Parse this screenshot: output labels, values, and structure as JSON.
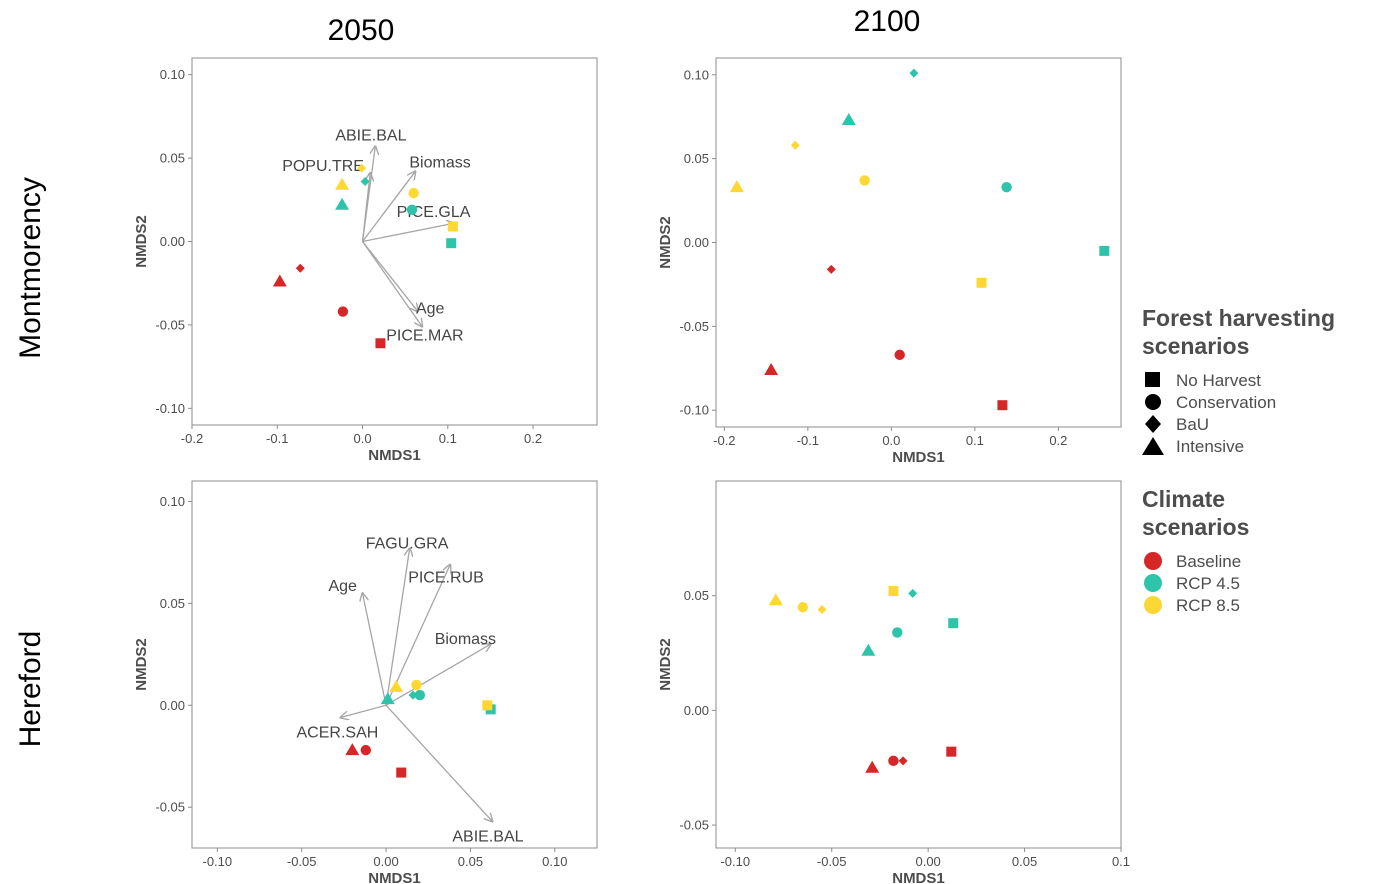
{
  "column_titles": [
    "2050",
    "2100"
  ],
  "row_titles": [
    "Montmorency",
    "Hereford"
  ],
  "colors": {
    "Baseline": "#d62728",
    "RCP 4.5": "#2ec4a9",
    "RCP 8.5": "#fdd835"
  },
  "legend": {
    "harvest": {
      "title_lines": [
        "Forest harvesting",
        "scenarios"
      ],
      "items": [
        {
          "label": "No Harvest",
          "shape": "square"
        },
        {
          "label": "Conservation",
          "shape": "circle"
        },
        {
          "label": "BaU",
          "shape": "diamond"
        },
        {
          "label": "Intensive",
          "shape": "triangle"
        }
      ]
    },
    "climate": {
      "title_lines": [
        "Climate",
        "scenarios"
      ],
      "items": [
        {
          "label": "Baseline",
          "color": "#d62728"
        },
        {
          "label": "RCP 4.5",
          "color": "#2ec4a9"
        },
        {
          "label": "RCP 8.5",
          "color": "#fdd835"
        }
      ]
    }
  },
  "chart_data": [
    {
      "type": "scatter",
      "row": "Montmorency",
      "column": "2050",
      "xlabel": "NMDS1",
      "ylabel": "NMDS2",
      "xlim": [
        -0.2,
        0.275
      ],
      "ylim": [
        -0.11,
        0.11
      ],
      "xticks": [
        -0.2,
        -0.1,
        0.0,
        0.1,
        0.2
      ],
      "xtick_labels": [
        "-0.2",
        "-0.1",
        "0.0",
        "0.1",
        "0.2"
      ],
      "yticks": [
        0.1,
        0.05,
        0.0,
        -0.05,
        -0.1
      ],
      "ytick_labels": [
        "0.10",
        "0.05",
        "0.00",
        "-0.05",
        "-0.10"
      ],
      "points": [
        {
          "climate": "Baseline",
          "harvest": "Intensive",
          "x": -0.097,
          "y": -0.024
        },
        {
          "climate": "Baseline",
          "harvest": "BaU",
          "x": -0.073,
          "y": -0.016
        },
        {
          "climate": "Baseline",
          "harvest": "Conservation",
          "x": -0.023,
          "y": -0.042
        },
        {
          "climate": "Baseline",
          "harvest": "No Harvest",
          "x": 0.021,
          "y": -0.061
        },
        {
          "climate": "RCP 4.5",
          "harvest": "Intensive",
          "x": -0.024,
          "y": 0.022
        },
        {
          "climate": "RCP 4.5",
          "harvest": "BaU",
          "x": 0.003,
          "y": 0.036
        },
        {
          "climate": "RCP 4.5",
          "harvest": "Conservation",
          "x": 0.058,
          "y": 0.019
        },
        {
          "climate": "RCP 4.5",
          "harvest": "No Harvest",
          "x": 0.104,
          "y": -0.001
        },
        {
          "climate": "RCP 8.5",
          "harvest": "Intensive",
          "x": -0.024,
          "y": 0.034
        },
        {
          "climate": "RCP 8.5",
          "harvest": "BaU",
          "x": -0.001,
          "y": 0.044
        },
        {
          "climate": "RCP 8.5",
          "harvest": "Conservation",
          "x": 0.06,
          "y": 0.029
        },
        {
          "climate": "RCP 8.5",
          "harvest": "No Harvest",
          "x": 0.106,
          "y": 0.009
        }
      ],
      "vectors": [
        {
          "label": "ABIE.BAL",
          "x": 0.015,
          "y": 0.057
        },
        {
          "label": "POPU.TRE",
          "x": 0.009,
          "y": 0.041
        },
        {
          "label": "Biomass",
          "x": 0.062,
          "y": 0.042
        },
        {
          "label": "PICE.GLA",
          "x": 0.108,
          "y": 0.011
        },
        {
          "label": "Age",
          "x": 0.065,
          "y": -0.042
        },
        {
          "label": "PICE.MAR",
          "x": 0.07,
          "y": -0.051
        }
      ]
    },
    {
      "type": "scatter",
      "row": "Montmorency",
      "column": "2100",
      "xlabel": "NMDS1",
      "ylabel": "NMDS2",
      "xlim": [
        -0.21,
        0.275
      ],
      "ylim": [
        -0.11,
        0.11
      ],
      "xticks": [
        -0.2,
        -0.1,
        0.0,
        0.1,
        0.2
      ],
      "xtick_labels": [
        "-0.2",
        "-0.1",
        "0.0",
        "0.1",
        "0.2"
      ],
      "yticks": [
        0.1,
        0.05,
        0.0,
        -0.05,
        -0.1
      ],
      "ytick_labels": [
        "0.10",
        "0.05",
        "0.00",
        "-0.05",
        "-0.10"
      ],
      "points": [
        {
          "climate": "Baseline",
          "harvest": "Intensive",
          "x": -0.144,
          "y": -0.076
        },
        {
          "climate": "Baseline",
          "harvest": "BaU",
          "x": -0.072,
          "y": -0.016
        },
        {
          "climate": "Baseline",
          "harvest": "Conservation",
          "x": 0.01,
          "y": -0.067
        },
        {
          "climate": "Baseline",
          "harvest": "No Harvest",
          "x": 0.133,
          "y": -0.097
        },
        {
          "climate": "RCP 4.5",
          "harvest": "Intensive",
          "x": -0.051,
          "y": 0.073
        },
        {
          "climate": "RCP 4.5",
          "harvest": "BaU",
          "x": 0.027,
          "y": 0.101
        },
        {
          "climate": "RCP 4.5",
          "harvest": "Conservation",
          "x": 0.138,
          "y": 0.033
        },
        {
          "climate": "RCP 4.5",
          "harvest": "No Harvest",
          "x": 0.255,
          "y": -0.005
        },
        {
          "climate": "RCP 8.5",
          "harvest": "Intensive",
          "x": -0.185,
          "y": 0.033
        },
        {
          "climate": "RCP 8.5",
          "harvest": "BaU",
          "x": -0.115,
          "y": 0.058
        },
        {
          "climate": "RCP 8.5",
          "harvest": "Conservation",
          "x": -0.032,
          "y": 0.037
        },
        {
          "climate": "RCP 8.5",
          "harvest": "No Harvest",
          "x": 0.108,
          "y": -0.024
        }
      ],
      "vectors": []
    },
    {
      "type": "scatter",
      "row": "Hereford",
      "column": "2050",
      "xlabel": "NMDS1",
      "ylabel": "NMDS2",
      "xlim": [
        -0.115,
        0.125
      ],
      "ylim": [
        -0.07,
        0.11
      ],
      "xticks": [
        -0.1,
        -0.05,
        0.0,
        0.05,
        0.1
      ],
      "xtick_labels": [
        "-0.10",
        "-0.05",
        "0.00",
        "0.05",
        "0.10"
      ],
      "yticks": [
        0.1,
        0.05,
        0.0,
        -0.05
      ],
      "ytick_labels": [
        "0.10",
        "0.05",
        "0.00",
        "-0.05"
      ],
      "points": [
        {
          "climate": "Baseline",
          "harvest": "Intensive",
          "x": -0.02,
          "y": -0.022
        },
        {
          "climate": "Baseline",
          "harvest": "Conservation",
          "x": -0.012,
          "y": -0.022
        },
        {
          "climate": "Baseline",
          "harvest": "No Harvest",
          "x": 0.009,
          "y": -0.033
        },
        {
          "climate": "RCP 4.5",
          "harvest": "Intensive",
          "x": 0.001,
          "y": 0.003
        },
        {
          "climate": "RCP 4.5",
          "harvest": "BaU",
          "x": 0.016,
          "y": 0.005
        },
        {
          "climate": "RCP 4.5",
          "harvest": "Conservation",
          "x": 0.02,
          "y": 0.005
        },
        {
          "climate": "RCP 4.5",
          "harvest": "No Harvest",
          "x": 0.062,
          "y": -0.002
        },
        {
          "climate": "RCP 8.5",
          "harvest": "Intensive",
          "x": 0.006,
          "y": 0.009
        },
        {
          "climate": "RCP 8.5",
          "harvest": "Conservation",
          "x": 0.018,
          "y": 0.01
        },
        {
          "climate": "RCP 8.5",
          "harvest": "No Harvest",
          "x": 0.06,
          "y": 0.0
        }
      ],
      "vectors": [
        {
          "label": "FAGU.GRA",
          "x": 0.014,
          "y": 0.077
        },
        {
          "label": "PICE.RUB",
          "x": 0.038,
          "y": 0.069
        },
        {
          "label": "Age",
          "x": -0.014,
          "y": 0.055
        },
        {
          "label": "Biomass",
          "x": 0.062,
          "y": 0.03
        },
        {
          "label": "ACER.SAH",
          "x": -0.027,
          "y": -0.006
        },
        {
          "label": "ABIE.BAL",
          "x": 0.063,
          "y": -0.057
        }
      ]
    },
    {
      "type": "scatter",
      "row": "Hereford",
      "column": "2100",
      "xlabel": "NMDS1",
      "ylabel": "NMDS2",
      "xlim": [
        -0.11,
        0.1
      ],
      "ylim": [
        -0.06,
        0.1
      ],
      "xticks": [
        -0.1,
        -0.05,
        0.0,
        0.05,
        0.1
      ],
      "xtick_labels": [
        "-0.10",
        "-0.05",
        "0.00",
        "0.05",
        "0.1"
      ],
      "yticks": [
        0.05,
        0.0,
        -0.05
      ],
      "ytick_labels": [
        "0.05",
        "0.00",
        "-0.05"
      ],
      "points": [
        {
          "climate": "Baseline",
          "harvest": "Intensive",
          "x": -0.029,
          "y": -0.025
        },
        {
          "climate": "Baseline",
          "harvest": "Conservation",
          "x": -0.018,
          "y": -0.022
        },
        {
          "climate": "Baseline",
          "harvest": "BaU",
          "x": -0.013,
          "y": -0.022
        },
        {
          "climate": "Baseline",
          "harvest": "No Harvest",
          "x": 0.012,
          "y": -0.018
        },
        {
          "climate": "RCP 4.5",
          "harvest": "Intensive",
          "x": -0.031,
          "y": 0.026
        },
        {
          "climate": "RCP 4.5",
          "harvest": "Conservation",
          "x": -0.016,
          "y": 0.034
        },
        {
          "climate": "RCP 4.5",
          "harvest": "BaU",
          "x": -0.008,
          "y": 0.051
        },
        {
          "climate": "RCP 4.5",
          "harvest": "No Harvest",
          "x": 0.013,
          "y": 0.038
        },
        {
          "climate": "RCP 8.5",
          "harvest": "Intensive",
          "x": -0.079,
          "y": 0.048
        },
        {
          "climate": "RCP 8.5",
          "harvest": "Conservation",
          "x": -0.065,
          "y": 0.045
        },
        {
          "climate": "RCP 8.5",
          "harvest": "BaU",
          "x": -0.055,
          "y": 0.044
        },
        {
          "climate": "RCP 8.5",
          "harvest": "No Harvest",
          "x": -0.018,
          "y": 0.052
        }
      ],
      "vectors": []
    }
  ]
}
